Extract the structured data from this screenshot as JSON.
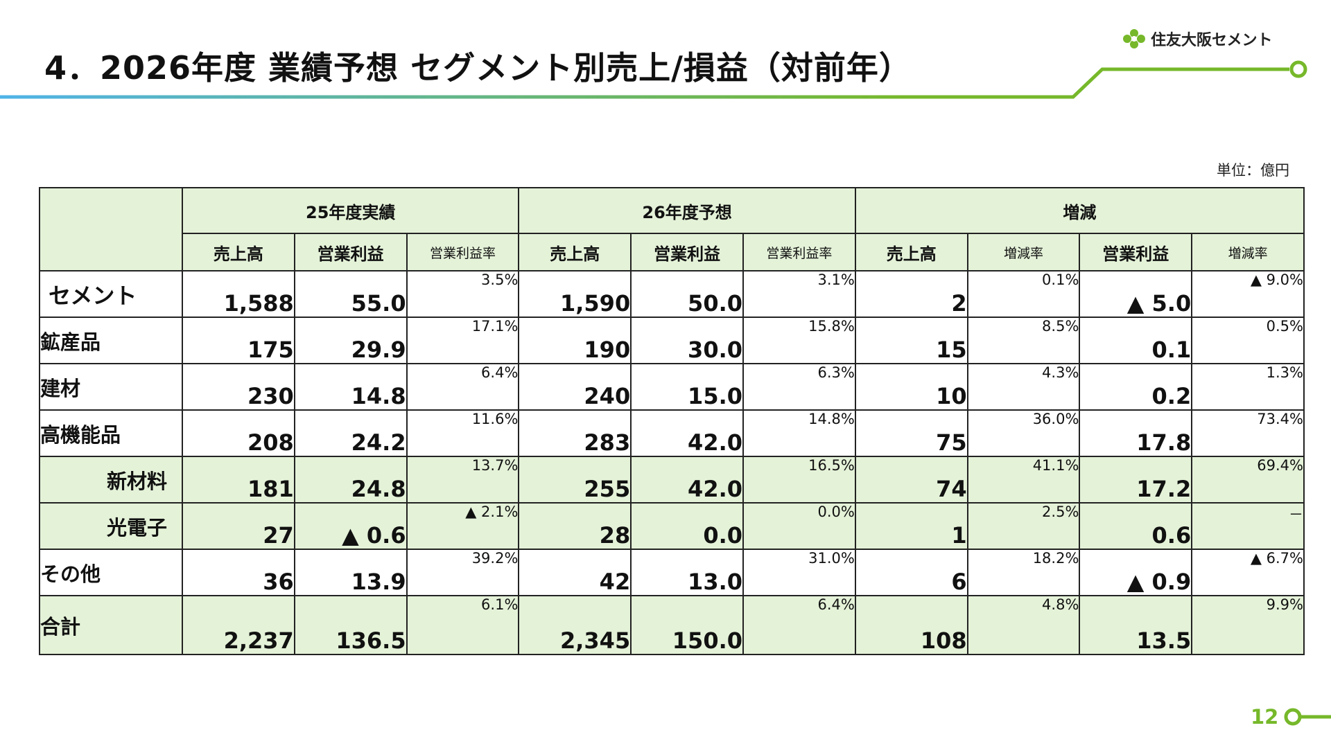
{
  "title": "4．2026年度 業績予想 セグメント別売上/損益（対前年）",
  "logo_text": "住友大阪セメント",
  "unit": "単位：億円",
  "page_number": "12",
  "colors": {
    "accent_green": "#76b82a",
    "accent_blue": "#4fb3e8",
    "shade": "#e4f2d8"
  },
  "groups": [
    "25年度実績",
    "26年度予想",
    "増減"
  ],
  "subheaders": {
    "sales": "売上高",
    "op": "営業利益",
    "op_rate": "営業利益率",
    "chg_rate": "増減率"
  },
  "rows": [
    {
      "name": "セメント",
      "v": [
        "1,588",
        "55.0",
        "3.5%",
        "1,590",
        "50.0",
        "3.1%",
        "2",
        "0.1%",
        "▲ 5.0",
        "▲ 9.0%"
      ]
    },
    {
      "name": "鉱産品",
      "v": [
        "175",
        "29.9",
        "17.1%",
        "190",
        "30.0",
        "15.8%",
        "15",
        "8.5%",
        "0.1",
        "0.5%"
      ]
    },
    {
      "name": "建材",
      "v": [
        "230",
        "14.8",
        "6.4%",
        "240",
        "15.0",
        "6.3%",
        "10",
        "4.3%",
        "0.2",
        "1.3%"
      ]
    },
    {
      "name": "高機能品",
      "v": [
        "208",
        "24.2",
        "11.6%",
        "283",
        "42.0",
        "14.8%",
        "75",
        "36.0%",
        "17.8",
        "73.4%"
      ]
    },
    {
      "name": "新材料",
      "v": [
        "181",
        "24.8",
        "13.7%",
        "255",
        "42.0",
        "16.5%",
        "74",
        "41.1%",
        "17.2",
        "69.4%"
      ]
    },
    {
      "name": "光電子",
      "v": [
        "27",
        "▲ 0.6",
        "▲ 2.1%",
        "28",
        "0.0",
        "0.0%",
        "1",
        "2.5%",
        "0.6",
        "－"
      ]
    },
    {
      "name": "その他",
      "v": [
        "36",
        "13.9",
        "39.2%",
        "42",
        "13.0",
        "31.0%",
        "6",
        "18.2%",
        "▲ 0.9",
        "▲ 6.7%"
      ]
    },
    {
      "name": "合計",
      "v": [
        "2,237",
        "136.5",
        "6.1%",
        "2,345",
        "150.0",
        "6.4%",
        "108",
        "4.8%",
        "13.5",
        "9.9%"
      ]
    }
  ]
}
